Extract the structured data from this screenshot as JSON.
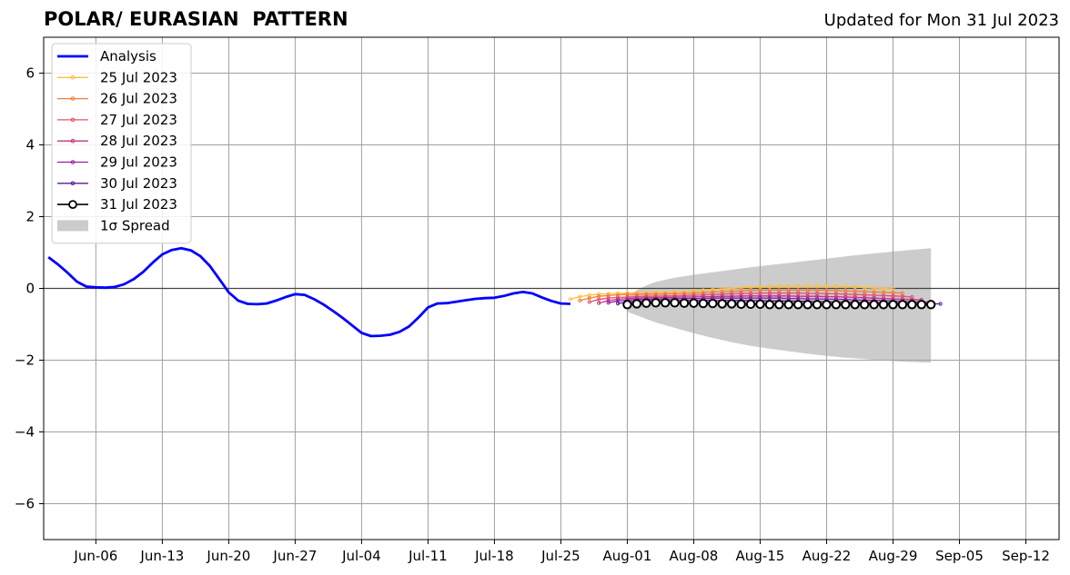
{
  "header": {
    "title": "POLAR/ EURASIAN  PATTERN",
    "updated": "Updated for Mon 31 Jul 2023"
  },
  "chart_data": {
    "type": "line",
    "title": "POLAR/ EURASIAN  PATTERN",
    "xlabel": "",
    "ylabel": "",
    "x_unit": "days since Jun-01 2023",
    "xlim": [
      -0.5,
      106.5
    ],
    "ylim": [
      -7,
      7
    ],
    "x_ticks": [
      {
        "x": 5,
        "label": "Jun-06"
      },
      {
        "x": 12,
        "label": "Jun-13"
      },
      {
        "x": 19,
        "label": "Jun-20"
      },
      {
        "x": 26,
        "label": "Jun-27"
      },
      {
        "x": 33,
        "label": "Jul-04"
      },
      {
        "x": 40,
        "label": "Jul-11"
      },
      {
        "x": 47,
        "label": "Jul-18"
      },
      {
        "x": 54,
        "label": "Jul-25"
      },
      {
        "x": 61,
        "label": "Aug-01"
      },
      {
        "x": 68,
        "label": "Aug-08"
      },
      {
        "x": 75,
        "label": "Aug-15"
      },
      {
        "x": 82,
        "label": "Aug-22"
      },
      {
        "x": 89,
        "label": "Aug-29"
      },
      {
        "x": 96,
        "label": "Sep-05"
      },
      {
        "x": 103,
        "label": "Sep-12"
      }
    ],
    "y_ticks": [
      {
        "y": 6,
        "label": "6"
      },
      {
        "y": 4,
        "label": "4"
      },
      {
        "y": 2,
        "label": "2"
      },
      {
        "y": 0,
        "label": "0"
      },
      {
        "y": -2,
        "label": "−2"
      },
      {
        "y": -4,
        "label": "−4"
      },
      {
        "y": -6,
        "label": "−6"
      }
    ],
    "grid": true,
    "legend_position": "top-left",
    "analysis": {
      "name": "Analysis",
      "color": "#0000ff",
      "start_x": 0,
      "values": [
        0.87,
        0.67,
        0.44,
        0.19,
        0.05,
        0.03,
        0.02,
        0.04,
        0.12,
        0.26,
        0.46,
        0.72,
        0.95,
        1.07,
        1.12,
        1.06,
        0.9,
        0.63,
        0.26,
        -0.11,
        -0.34,
        -0.43,
        -0.44,
        -0.42,
        -0.34,
        -0.24,
        -0.16,
        -0.18,
        -0.3,
        -0.45,
        -0.63,
        -0.82,
        -1.03,
        -1.24,
        -1.33,
        -1.32,
        -1.29,
        -1.21,
        -1.06,
        -0.81,
        -0.53,
        -0.42,
        -0.41,
        -0.37,
        -0.33,
        -0.29,
        -0.27,
        -0.26,
        -0.21,
        -0.14,
        -0.1,
        -0.14,
        -0.25,
        -0.35,
        -0.42,
        -0.43
      ]
    },
    "forecasts": [
      {
        "name": "25 Jul 2023",
        "color": "#ffbf40",
        "start_x": 55,
        "values": [
          -0.3,
          -0.23,
          -0.19,
          -0.16,
          -0.15,
          -0.14,
          -0.13,
          -0.12,
          -0.12,
          -0.11,
          -0.11,
          -0.1,
          -0.09,
          -0.07,
          -0.05,
          -0.03,
          -0.01,
          0.0,
          0.02,
          0.03,
          0.04,
          0.05,
          0.06,
          0.06,
          0.06,
          0.07,
          0.07,
          0.06,
          0.06,
          0.05,
          0.04,
          0.02,
          0.01,
          0.0,
          -0.01
        ]
      },
      {
        "name": "26 Jul 2023",
        "color": "#f47e35",
        "start_x": 56,
        "values": [
          -0.34,
          -0.27,
          -0.22,
          -0.2,
          -0.18,
          -0.17,
          -0.17,
          -0.16,
          -0.16,
          -0.15,
          -0.15,
          -0.14,
          -0.13,
          -0.12,
          -0.1,
          -0.09,
          -0.08,
          -0.07,
          -0.06,
          -0.05,
          -0.05,
          -0.05,
          -0.05,
          -0.05,
          -0.05,
          -0.05,
          -0.05,
          -0.06,
          -0.07,
          -0.08,
          -0.09,
          -0.1,
          -0.11,
          -0.12,
          -0.13
        ]
      },
      {
        "name": "27 Jul 2023",
        "color": "#e5506b",
        "start_x": 57,
        "values": [
          -0.38,
          -0.31,
          -0.27,
          -0.25,
          -0.24,
          -0.23,
          -0.22,
          -0.22,
          -0.21,
          -0.21,
          -0.2,
          -0.19,
          -0.18,
          -0.17,
          -0.16,
          -0.15,
          -0.14,
          -0.14,
          -0.13,
          -0.13,
          -0.13,
          -0.13,
          -0.13,
          -0.14,
          -0.14,
          -0.15,
          -0.15,
          -0.16,
          -0.17,
          -0.18,
          -0.19,
          -0.2,
          -0.21,
          -0.22,
          -0.24
        ]
      },
      {
        "name": "28 Jul 2023",
        "color": "#c2338a",
        "start_x": 58,
        "values": [
          -0.41,
          -0.34,
          -0.3,
          -0.28,
          -0.27,
          -0.26,
          -0.26,
          -0.25,
          -0.25,
          -0.24,
          -0.24,
          -0.23,
          -0.23,
          -0.22,
          -0.22,
          -0.21,
          -0.21,
          -0.21,
          -0.21,
          -0.21,
          -0.21,
          -0.22,
          -0.22,
          -0.22,
          -0.23,
          -0.23,
          -0.24,
          -0.25,
          -0.26,
          -0.27,
          -0.28,
          -0.29,
          -0.3,
          -0.31,
          -0.32
        ]
      },
      {
        "name": "29 Jul 2023",
        "color": "#9420a4",
        "start_x": 59,
        "values": [
          -0.4,
          -0.35,
          -0.33,
          -0.31,
          -0.3,
          -0.3,
          -0.29,
          -0.29,
          -0.28,
          -0.28,
          -0.28,
          -0.27,
          -0.27,
          -0.27,
          -0.27,
          -0.27,
          -0.27,
          -0.27,
          -0.27,
          -0.28,
          -0.28,
          -0.29,
          -0.29,
          -0.3,
          -0.3,
          -0.31,
          -0.32,
          -0.33,
          -0.33,
          -0.34,
          -0.35,
          -0.36,
          -0.37,
          -0.38,
          -0.38
        ]
      },
      {
        "name": "30 Jul 2023",
        "color": "#5a1a96",
        "start_x": 60,
        "values": [
          -0.42,
          -0.38,
          -0.36,
          -0.35,
          -0.34,
          -0.34,
          -0.34,
          -0.34,
          -0.34,
          -0.34,
          -0.34,
          -0.34,
          -0.34,
          -0.34,
          -0.34,
          -0.34,
          -0.35,
          -0.35,
          -0.35,
          -0.36,
          -0.36,
          -0.37,
          -0.37,
          -0.38,
          -0.38,
          -0.39,
          -0.39,
          -0.4,
          -0.4,
          -0.41,
          -0.41,
          -0.42,
          -0.42,
          -0.43,
          -0.43
        ]
      },
      {
        "name": "31 Jul 2023",
        "color": "#000000",
        "start_x": 61,
        "marker": "open-circle",
        "values": [
          -0.45,
          -0.43,
          -0.41,
          -0.4,
          -0.4,
          -0.4,
          -0.41,
          -0.41,
          -0.42,
          -0.42,
          -0.43,
          -0.43,
          -0.44,
          -0.44,
          -0.44,
          -0.45,
          -0.45,
          -0.45,
          -0.45,
          -0.45,
          -0.45,
          -0.45,
          -0.45,
          -0.45,
          -0.45,
          -0.45,
          -0.45,
          -0.45,
          -0.45,
          -0.45,
          -0.45,
          -0.45,
          -0.45
        ]
      }
    ],
    "spread": {
      "name": "1σ Spread",
      "color": "#cccccc",
      "x": [
        61,
        62,
        63,
        64,
        66,
        68,
        70,
        72,
        74,
        76,
        78,
        80,
        82,
        84,
        86,
        88,
        90,
        92,
        93
      ],
      "upper": [
        -0.25,
        -0.05,
        0.08,
        0.18,
        0.3,
        0.38,
        0.45,
        0.52,
        0.59,
        0.65,
        0.71,
        0.77,
        0.83,
        0.89,
        0.95,
        1.0,
        1.05,
        1.1,
        1.12
      ],
      "lower": [
        -0.65,
        -0.75,
        -0.85,
        -0.95,
        -1.1,
        -1.25,
        -1.38,
        -1.5,
        -1.6,
        -1.68,
        -1.75,
        -1.82,
        -1.88,
        -1.93,
        -1.97,
        -2.01,
        -2.04,
        -2.06,
        -2.07
      ]
    }
  }
}
